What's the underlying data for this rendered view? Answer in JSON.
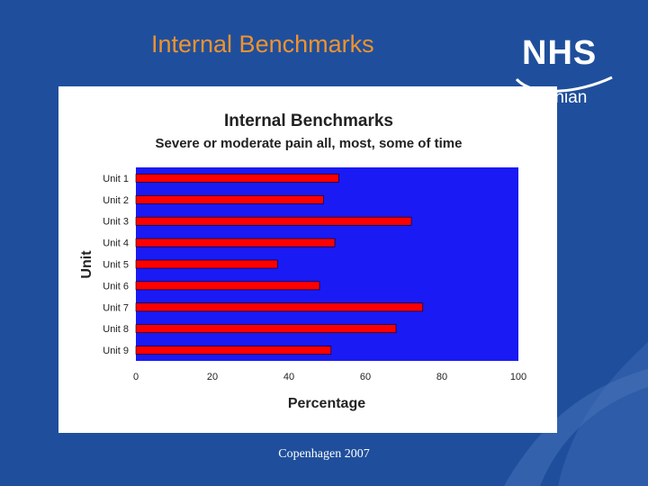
{
  "slide": {
    "title": "Internal Benchmarks",
    "footer": "Copenhagen 2007"
  },
  "logo": {
    "nhs": "NHS",
    "region": "Lothian"
  },
  "colors": {
    "background": "#1f4f9c",
    "title": "#f0922f",
    "plot_area": "#1a1af5",
    "bar": "#ff0000"
  },
  "chart_data": {
    "type": "bar",
    "orientation": "horizontal",
    "title": "Internal Benchmarks",
    "subtitle": "Severe or moderate pain all, most, some of time",
    "xlabel": "Percentage",
    "ylabel": "Unit",
    "categories": [
      "Unit 1",
      "Unit 2",
      "Unit 3",
      "Unit 4",
      "Unit 5",
      "Unit 6",
      "Unit 7",
      "Unit 8",
      "Unit 9"
    ],
    "values": [
      53,
      49,
      72,
      52,
      37,
      48,
      75,
      68,
      51
    ],
    "xlim": [
      0,
      100
    ],
    "xticks": [
      0,
      20,
      40,
      60,
      80,
      100
    ],
    "grid": false,
    "legend": "none"
  }
}
